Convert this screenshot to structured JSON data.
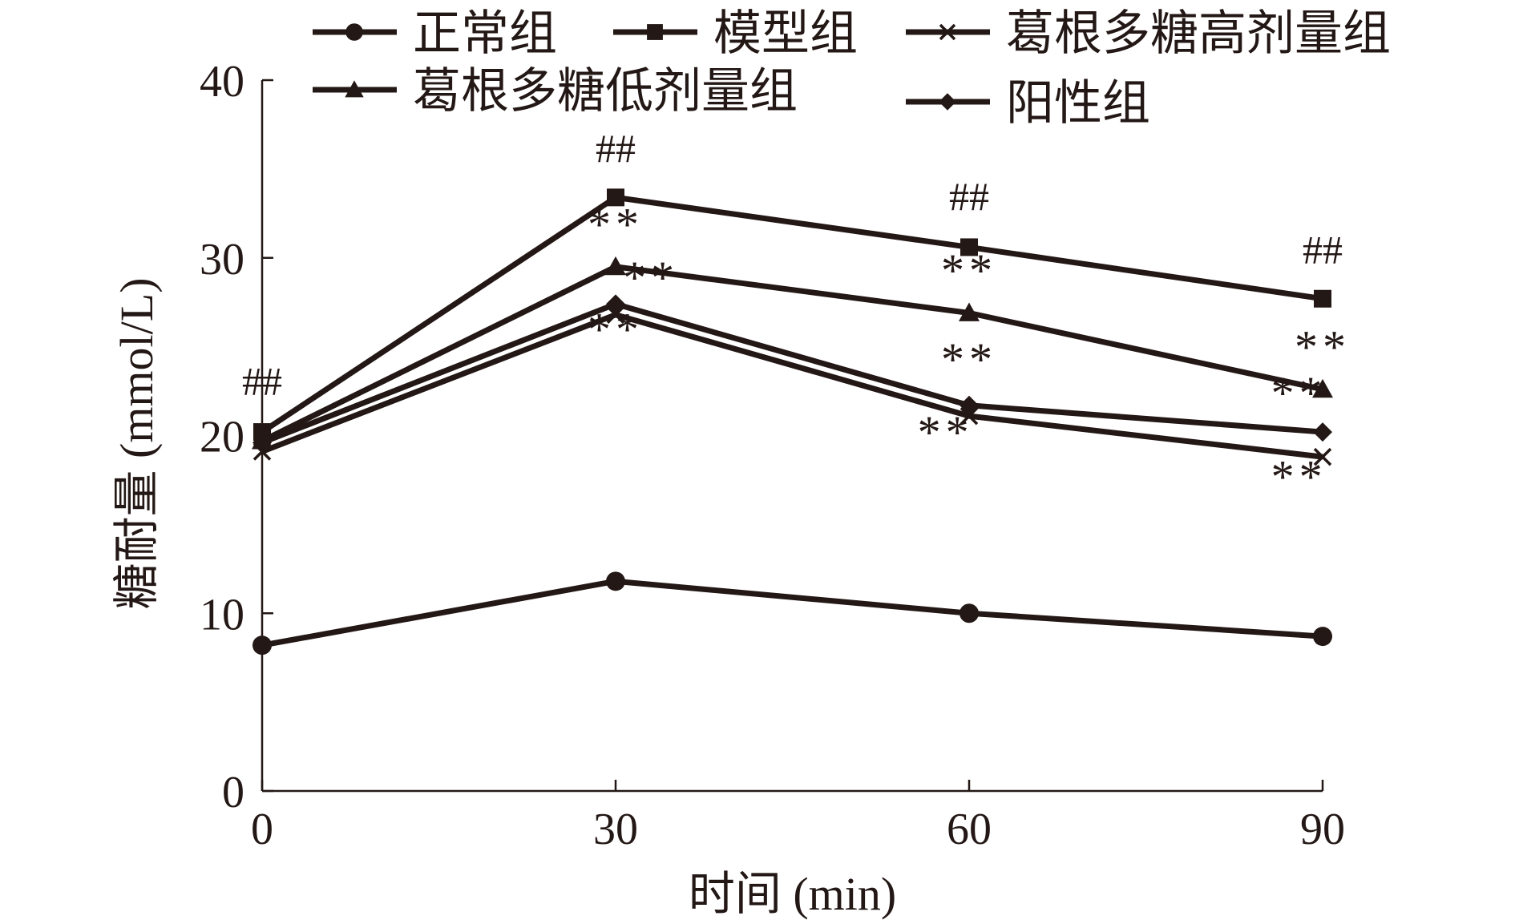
{
  "chart_data": {
    "type": "line",
    "xlabel": "时间 (min)",
    "ylabel": "糖耐量 (mmol/L)",
    "x": [
      0,
      30,
      60,
      90
    ],
    "xlim": [
      0,
      90
    ],
    "ylim": [
      0,
      40
    ],
    "xticks": [
      "0",
      "30",
      "60",
      "90"
    ],
    "yticks": [
      "0",
      "10",
      "20",
      "30",
      "40"
    ],
    "grid": false,
    "legend_position": "top",
    "line_color": "#231815",
    "series": [
      {
        "name": "正常组",
        "marker": "circle",
        "values": [
          8.2,
          11.8,
          10.0,
          8.7
        ]
      },
      {
        "name": "模型组",
        "marker": "square",
        "values": [
          20.2,
          33.4,
          30.6,
          27.7
        ]
      },
      {
        "name": "葛根多糖高剂量组",
        "marker": "x",
        "values": [
          19.1,
          26.8,
          21.1,
          18.8
        ]
      },
      {
        "name": "葛根多糖低剂量组",
        "marker": "triangle",
        "values": [
          19.7,
          29.5,
          26.9,
          22.6
        ]
      },
      {
        "name": "阳性组",
        "marker": "diamond",
        "values": [
          19.6,
          27.4,
          21.7,
          20.2
        ]
      }
    ],
    "annotations": [
      {
        "text": "##",
        "x": 0,
        "y": 22.3
      },
      {
        "text": "##",
        "x": 30,
        "y": 35.4
      },
      {
        "text": "##",
        "x": 60,
        "y": 32.7
      },
      {
        "text": "##",
        "x": 90,
        "y": 29.7
      },
      {
        "text": "**",
        "x": 30,
        "y": 31.0
      },
      {
        "text": "**",
        "x": 33,
        "y": 28.0
      },
      {
        "text": "**",
        "x": 30,
        "y": 25.1
      },
      {
        "text": "**",
        "x": 60,
        "y": 28.4
      },
      {
        "text": "**",
        "x": 60,
        "y": 23.4
      },
      {
        "text": "**",
        "x": 58,
        "y": 19.3
      },
      {
        "text": "**",
        "x": 90,
        "y": 24.1
      },
      {
        "text": "**",
        "x": 88,
        "y": 21.5
      },
      {
        "text": "**",
        "x": 88,
        "y": 16.8
      }
    ]
  }
}
